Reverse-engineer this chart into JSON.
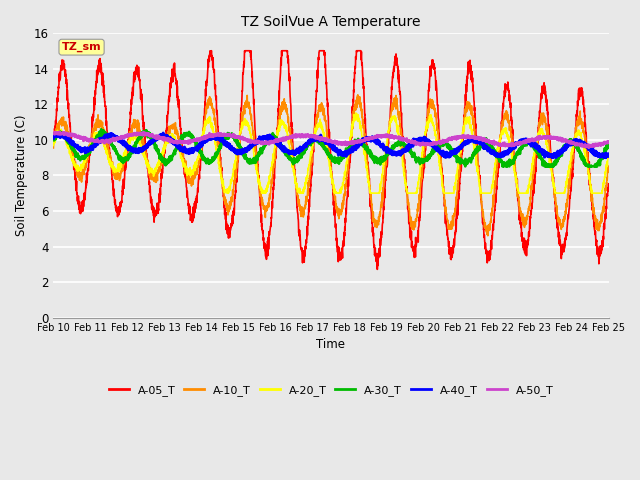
{
  "title": "TZ SoilVue A Temperature",
  "xlabel": "Time",
  "ylabel": "Soil Temperature (C)",
  "ylim": [
    0,
    16
  ],
  "yticks": [
    0,
    2,
    4,
    6,
    8,
    10,
    12,
    14,
    16
  ],
  "series_colors": {
    "A-05_T": "#ff0000",
    "A-10_T": "#ff8c00",
    "A-20_T": "#ffff00",
    "A-30_T": "#00bb00",
    "A-40_T": "#0000ff",
    "A-50_T": "#cc44cc"
  },
  "series_linewidths": {
    "A-05_T": 1.2,
    "A-10_T": 1.2,
    "A-20_T": 1.2,
    "A-30_T": 1.8,
    "A-40_T": 2.2,
    "A-50_T": 1.8
  },
  "background_color": "#e8e8e8",
  "plot_bg_color": "#e8e8e8",
  "grid_color": "#ffffff",
  "annotation_text": "TZ_sm",
  "annotation_color": "#cc0000",
  "annotation_bg": "#ffff99",
  "x_tick_labels": [
    "Feb 10",
    "Feb 11",
    "Feb 12",
    "Feb 13",
    "Feb 14",
    "Feb 15",
    "Feb 16",
    "Feb 17",
    "Feb 18",
    "Feb 19",
    "Feb 20",
    "Feb 21",
    "Feb 22",
    "Feb 23",
    "Feb 24",
    "Feb 25"
  ]
}
